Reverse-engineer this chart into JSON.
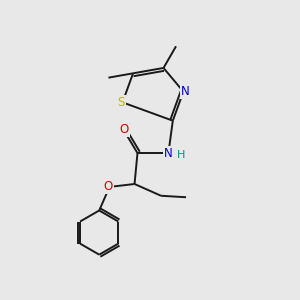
{
  "background_color": "#e8e8e8",
  "bond_color": "#1a1a1a",
  "bond_width": 1.4,
  "atom_colors": {
    "S": "#b8b800",
    "N": "#0000dd",
    "O": "#dd0000",
    "H": "#009090",
    "C": "#1a1a1a"
  },
  "figsize": [
    3.0,
    3.0
  ],
  "dpi": 100,
  "xlim": [
    0,
    10
  ],
  "ylim": [
    0,
    10
  ]
}
